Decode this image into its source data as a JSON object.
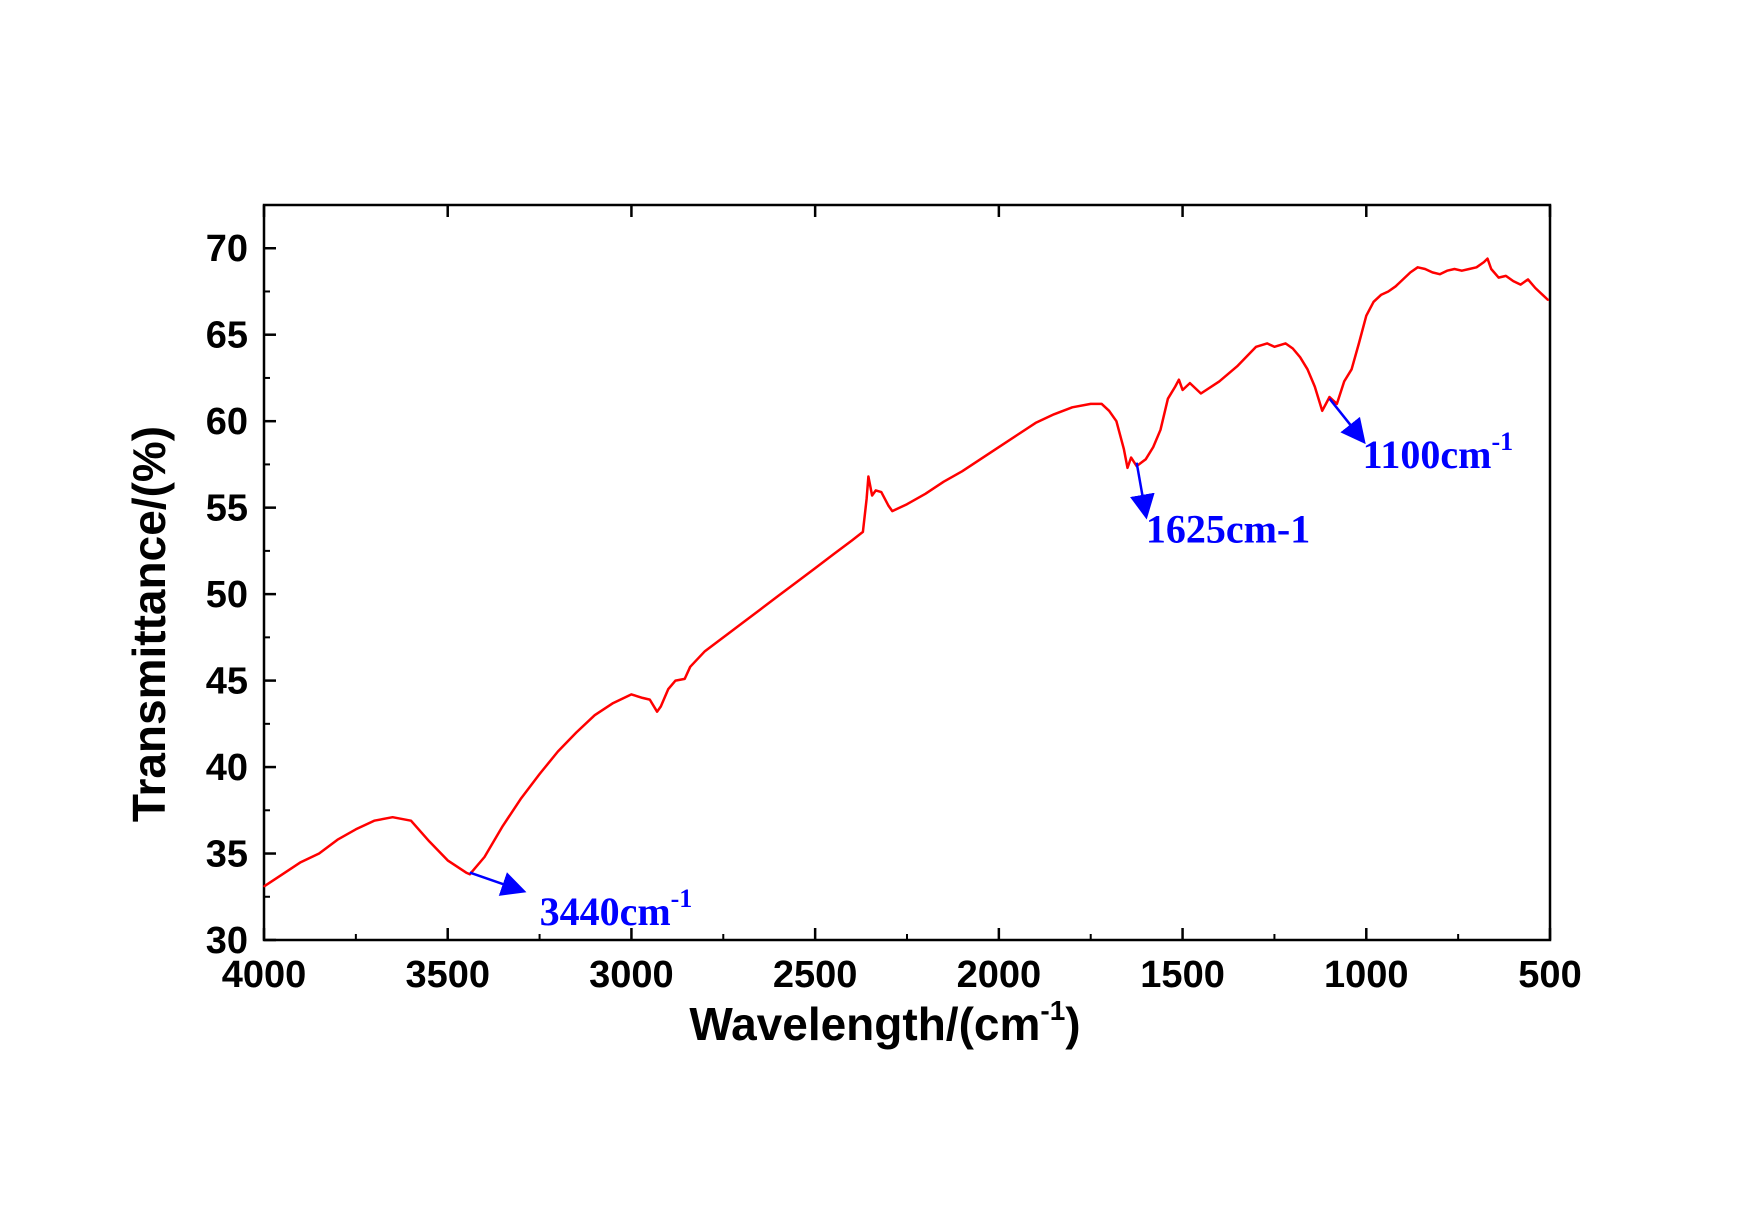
{
  "chart_data": {
    "type": "line",
    "title": "",
    "xlabel": "Wavelength/(cm",
    "xlabel_superscript": "-1",
    "xlabel_suffix": ")",
    "ylabel": "Transmittance/(%)",
    "xlim": [
      4000,
      500
    ],
    "ylim": [
      30,
      72.5
    ],
    "x_reversed": true,
    "xticks": [
      4000,
      3500,
      3000,
      2500,
      2000,
      1500,
      1000,
      500
    ],
    "yticks": [
      30,
      35,
      40,
      45,
      50,
      55,
      60,
      65,
      70
    ],
    "grid": false,
    "legend": "none",
    "series": [
      {
        "color": "#ff0000",
        "x": [
          4000,
          3950,
          3900,
          3850,
          3800,
          3750,
          3700,
          3650,
          3600,
          3550,
          3500,
          3450,
          3440,
          3400,
          3350,
          3300,
          3250,
          3200,
          3150,
          3100,
          3050,
          3000,
          2970,
          2950,
          2930,
          2920,
          2900,
          2880,
          2855,
          2840,
          2800,
          2750,
          2700,
          2650,
          2600,
          2550,
          2500,
          2450,
          2400,
          2370,
          2360,
          2355,
          2345,
          2335,
          2320,
          2300,
          2290,
          2250,
          2200,
          2150,
          2100,
          2050,
          2000,
          1950,
          1900,
          1850,
          1800,
          1750,
          1720,
          1700,
          1680,
          1660,
          1650,
          1640,
          1625,
          1600,
          1580,
          1560,
          1540,
          1520,
          1510,
          1500,
          1480,
          1450,
          1400,
          1350,
          1300,
          1270,
          1250,
          1220,
          1200,
          1180,
          1160,
          1140,
          1120,
          1110,
          1100,
          1080,
          1060,
          1040,
          1020,
          1000,
          980,
          960,
          940,
          920,
          900,
          880,
          860,
          840,
          820,
          800,
          780,
          760,
          740,
          720,
          700,
          680,
          670,
          660,
          640,
          620,
          600,
          580,
          560,
          540,
          520,
          505
        ],
        "y": [
          33.1,
          33.8,
          34.5,
          35.0,
          35.8,
          36.4,
          36.9,
          37.1,
          36.9,
          35.7,
          34.6,
          33.9,
          33.8,
          34.8,
          36.6,
          38.2,
          39.6,
          40.9,
          42.0,
          43.0,
          43.7,
          44.2,
          44.0,
          43.9,
          43.2,
          43.5,
          44.5,
          45.0,
          45.1,
          45.8,
          46.7,
          47.5,
          48.3,
          49.1,
          49.9,
          50.7,
          51.5,
          52.3,
          53.1,
          53.6,
          55.5,
          56.8,
          55.7,
          56.0,
          55.9,
          55.1,
          54.8,
          55.2,
          55.8,
          56.5,
          57.1,
          57.8,
          58.5,
          59.2,
          59.9,
          60.4,
          60.8,
          61.0,
          61.0,
          60.6,
          60.0,
          58.4,
          57.3,
          57.9,
          57.4,
          57.8,
          58.5,
          59.5,
          61.3,
          62.0,
          62.4,
          61.8,
          62.2,
          61.6,
          62.3,
          63.2,
          64.3,
          64.5,
          64.3,
          64.5,
          64.2,
          63.7,
          63.0,
          62.0,
          60.6,
          61.0,
          61.4,
          61.0,
          62.3,
          63.0,
          64.5,
          66.1,
          66.9,
          67.3,
          67.5,
          67.8,
          68.2,
          68.6,
          68.9,
          68.8,
          68.6,
          68.5,
          68.7,
          68.8,
          68.7,
          68.8,
          68.9,
          69.2,
          69.4,
          68.8,
          68.3,
          68.4,
          68.1,
          67.9,
          68.2,
          67.7,
          67.3,
          67.0
        ]
      }
    ],
    "annotations": [
      {
        "label": "3440cm",
        "sup": "-1",
        "point_x": 3440,
        "point_y": 33.9,
        "text_x": 3250,
        "text_y": 32.5,
        "color": "#0000ff"
      },
      {
        "label": "1625cm-1",
        "sup": "",
        "point_x": 1625,
        "point_y": 57.6,
        "text_x": 1600,
        "text_y": 54.6,
        "color": "#0000ff"
      },
      {
        "label": "1100cm",
        "sup": "-1",
        "point_x": 1100,
        "point_y": 61.3,
        "text_x": 1010,
        "text_y": 58.9,
        "color": "#0000ff"
      }
    ]
  }
}
